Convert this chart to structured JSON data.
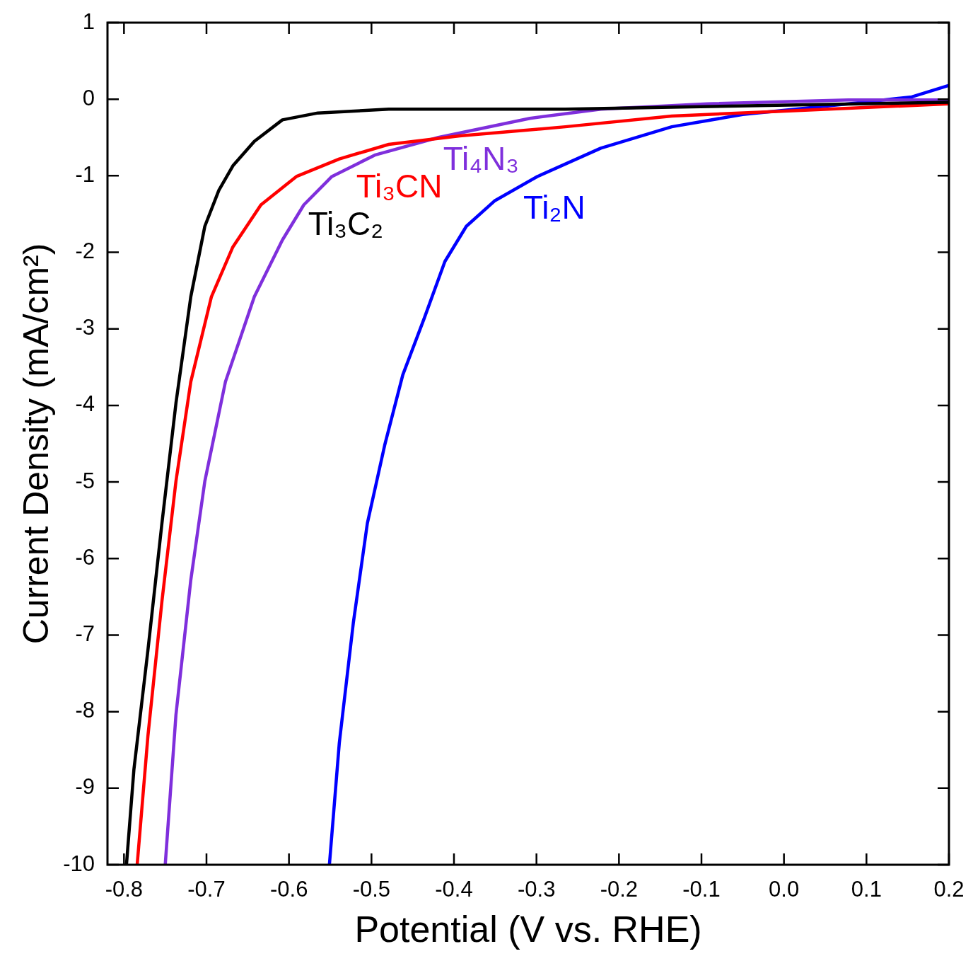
{
  "chart_data": {
    "type": "line",
    "xlabel": "Potential (V vs. RHE)",
    "ylabel": "Current Density (mA/cm²)",
    "xlim": [
      -0.82,
      0.2
    ],
    "ylim": [
      -10,
      1
    ],
    "xticks": [
      -0.8,
      -0.7,
      -0.6,
      -0.5,
      -0.4,
      -0.3,
      -0.2,
      -0.1,
      {
        "value": 0,
        "label": "0.0"
      },
      0.1,
      0.2
    ],
    "yticks": [
      -10,
      -9,
      -8,
      -7,
      -6,
      -5,
      -4,
      -3,
      -2,
      -1,
      0,
      1
    ],
    "grid": false,
    "legend": false,
    "marker": "none",
    "line_style": "solid",
    "series": [
      {
        "name": "Ti₃C₂",
        "color": "#000000",
        "x": [
          -0.797,
          -0.788,
          -0.771,
          -0.754,
          -0.737,
          -0.719,
          -0.702,
          -0.685,
          -0.668,
          -0.642,
          -0.608,
          -0.565,
          -0.479,
          -0.265,
          -0.008,
          0.2
        ],
        "values": [
          -10,
          -8.76,
          -7.2,
          -5.54,
          -3.97,
          -2.58,
          -1.66,
          -1.19,
          -0.87,
          -0.55,
          -0.27,
          -0.18,
          -0.13,
          -0.13,
          -0.08,
          -0.04
        ]
      },
      {
        "name": "Ti₃CN",
        "color": "#ff0000",
        "x": [
          -0.784,
          -0.771,
          -0.754,
          -0.737,
          -0.719,
          -0.694,
          -0.668,
          -0.634,
          -0.591,
          -0.539,
          -0.479,
          -0.393,
          -0.265,
          -0.136,
          -0.008,
          0.2
        ],
        "values": [
          -10,
          -8.32,
          -6.56,
          -4.99,
          -3.69,
          -2.58,
          -1.93,
          -1.38,
          -1.01,
          -0.78,
          -0.59,
          -0.48,
          -0.36,
          -0.22,
          -0.16,
          -0.06
        ]
      },
      {
        "name": "Ti₄N₃",
        "color": "#7f2fdc",
        "x": [
          -0.75,
          -0.737,
          -0.719,
          -0.702,
          -0.677,
          -0.642,
          -0.608,
          -0.582,
          -0.548,
          -0.496,
          -0.419,
          -0.308,
          -0.222,
          -0.093,
          0.078,
          0.2
        ],
        "values": [
          -10,
          -8.04,
          -6.28,
          -4.99,
          -3.69,
          -2.58,
          -1.84,
          -1.38,
          -1.01,
          -0.73,
          -0.5,
          -0.25,
          -0.13,
          -0.06,
          -0.01,
          -0.01
        ]
      },
      {
        "name": "Ti₂N",
        "color": "#0000ff",
        "x": [
          -0.551,
          -0.539,
          -0.522,
          -0.505,
          -0.484,
          -0.462,
          -0.436,
          -0.411,
          -0.385,
          -0.351,
          -0.299,
          -0.222,
          -0.136,
          -0.05,
          0.078,
          0.155,
          0.2
        ],
        "values": [
          -10,
          -8.41,
          -6.84,
          -5.54,
          -4.52,
          -3.6,
          -2.86,
          -2.12,
          -1.66,
          -1.33,
          -1.01,
          -0.64,
          -0.36,
          -0.2,
          -0.06,
          0.03,
          0.18
        ]
      }
    ]
  }
}
